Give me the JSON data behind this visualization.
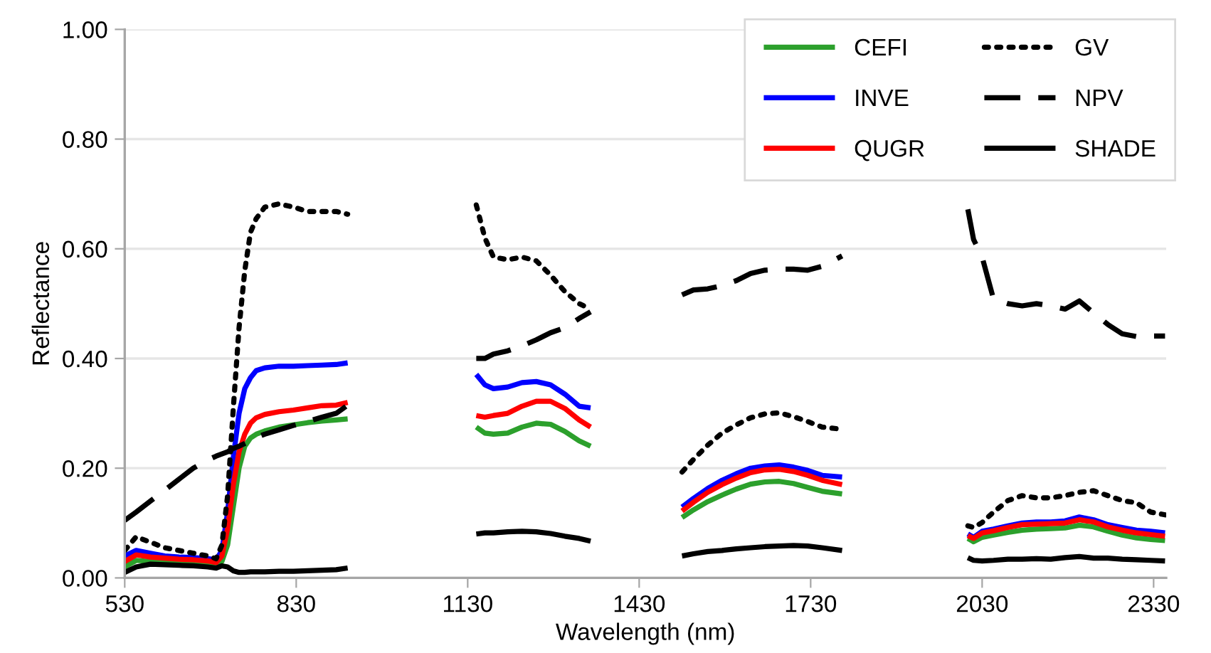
{
  "chart_data": {
    "type": "line",
    "xlabel": "Wavelength (nm)",
    "ylabel": "Reflectance",
    "x": [
      530,
      550,
      575,
      600,
      625,
      650,
      675,
      690,
      700,
      710,
      720,
      730,
      740,
      750,
      760,
      775,
      800,
      825,
      850,
      875,
      900,
      920,
      1000,
      1145,
      1160,
      1175,
      1200,
      1225,
      1250,
      1275,
      1300,
      1325,
      1345,
      1430,
      1505,
      1525,
      1550,
      1575,
      1600,
      1625,
      1650,
      1675,
      1700,
      1725,
      1750,
      1785,
      1900,
      2005,
      2015,
      2030,
      2050,
      2075,
      2100,
      2125,
      2150,
      2175,
      2200,
      2225,
      2250,
      2275,
      2300,
      2325,
      2350
    ],
    "series": [
      {
        "name": "CEFI",
        "color": "#2ca02c",
        "line_style": "solid",
        "values": [
          0.02,
          0.032,
          0.03,
          0.028,
          0.027,
          0.027,
          0.026,
          0.024,
          0.03,
          0.06,
          0.13,
          0.2,
          0.24,
          0.255,
          0.262,
          0.268,
          0.275,
          0.279,
          0.283,
          0.286,
          0.288,
          0.29,
          null,
          0.275,
          0.264,
          0.262,
          0.264,
          0.275,
          0.282,
          0.28,
          0.267,
          0.25,
          0.24,
          null,
          0.11,
          0.124,
          0.139,
          0.151,
          0.162,
          0.171,
          0.175,
          0.176,
          0.172,
          0.165,
          0.158,
          0.153,
          null,
          0.072,
          0.066,
          0.074,
          0.078,
          0.083,
          0.087,
          0.089,
          0.09,
          0.091,
          0.096,
          0.093,
          0.085,
          0.078,
          0.073,
          0.07,
          0.068
        ]
      },
      {
        "name": "INVE",
        "color": "#0000ff",
        "line_style": "solid",
        "values": [
          0.04,
          0.05,
          0.045,
          0.04,
          0.038,
          0.037,
          0.035,
          0.033,
          0.05,
          0.12,
          0.22,
          0.3,
          0.345,
          0.365,
          0.378,
          0.383,
          0.386,
          0.386,
          0.387,
          0.388,
          0.389,
          0.392,
          null,
          0.371,
          0.352,
          0.345,
          0.348,
          0.356,
          0.358,
          0.352,
          0.335,
          0.313,
          0.31,
          null,
          0.129,
          0.145,
          0.163,
          0.178,
          0.19,
          0.2,
          0.204,
          0.206,
          0.202,
          0.196,
          0.187,
          0.184,
          null,
          0.08,
          0.074,
          0.085,
          0.089,
          0.095,
          0.1,
          0.102,
          0.102,
          0.104,
          0.111,
          0.106,
          0.097,
          0.092,
          0.087,
          0.085,
          0.082
        ]
      },
      {
        "name": "QUGR",
        "color": "#ff0000",
        "line_style": "solid",
        "values": [
          0.03,
          0.042,
          0.038,
          0.036,
          0.034,
          0.033,
          0.031,
          0.028,
          0.04,
          0.09,
          0.17,
          0.23,
          0.262,
          0.282,
          0.292,
          0.298,
          0.303,
          0.306,
          0.31,
          0.314,
          0.315,
          0.32,
          null,
          0.296,
          0.293,
          0.296,
          0.3,
          0.313,
          0.322,
          0.322,
          0.309,
          0.288,
          0.275,
          null,
          0.122,
          0.138,
          0.156,
          0.17,
          0.182,
          0.192,
          0.197,
          0.198,
          0.194,
          0.187,
          0.178,
          0.17,
          null,
          0.077,
          0.072,
          0.082,
          0.086,
          0.092,
          0.097,
          0.098,
          0.099,
          0.1,
          0.106,
          0.102,
          0.093,
          0.087,
          0.082,
          0.079,
          0.076
        ]
      },
      {
        "name": "GV",
        "color": "#000000",
        "line_style": "dotted",
        "values": [
          0.05,
          0.075,
          0.065,
          0.055,
          0.05,
          0.045,
          0.04,
          0.035,
          0.06,
          0.15,
          0.31,
          0.456,
          0.56,
          0.63,
          0.655,
          0.676,
          0.682,
          0.676,
          0.668,
          0.668,
          0.668,
          0.663,
          null,
          0.68,
          0.62,
          0.585,
          0.58,
          0.585,
          0.578,
          0.552,
          0.522,
          0.5,
          0.49,
          null,
          0.193,
          0.216,
          0.242,
          0.264,
          0.279,
          0.292,
          0.299,
          0.301,
          0.294,
          0.285,
          0.275,
          0.271,
          null,
          0.095,
          0.092,
          0.101,
          0.12,
          0.141,
          0.15,
          0.146,
          0.146,
          0.15,
          0.156,
          0.159,
          0.15,
          0.141,
          0.137,
          0.12,
          0.115
        ]
      },
      {
        "name": "NPV",
        "color": "#000000",
        "line_style": "dashed",
        "values": [
          0.105,
          0.12,
          0.14,
          0.16,
          0.18,
          0.2,
          0.215,
          0.222,
          0.226,
          0.23,
          0.236,
          0.24,
          0.245,
          0.25,
          0.256,
          0.262,
          0.27,
          0.278,
          0.285,
          0.293,
          0.3,
          0.315,
          null,
          0.4,
          0.4,
          0.408,
          0.414,
          0.423,
          0.434,
          0.447,
          0.456,
          0.473,
          0.485,
          null,
          0.516,
          0.525,
          0.527,
          0.533,
          0.542,
          0.555,
          0.561,
          0.563,
          0.563,
          0.561,
          0.568,
          0.587,
          null,
          0.672,
          0.617,
          0.585,
          0.508,
          0.5,
          0.496,
          0.5,
          0.496,
          0.49,
          0.505,
          0.483,
          0.462,
          0.445,
          0.44,
          0.441,
          0.441
        ]
      },
      {
        "name": "SHADE",
        "color": "#000000",
        "line_style": "solid",
        "values": [
          0.01,
          0.02,
          0.025,
          0.024,
          0.023,
          0.022,
          0.02,
          0.018,
          0.022,
          0.02,
          0.013,
          0.01,
          0.01,
          0.011,
          0.011,
          0.011,
          0.012,
          0.012,
          0.013,
          0.014,
          0.015,
          0.018,
          null,
          0.08,
          0.082,
          0.082,
          0.084,
          0.085,
          0.084,
          0.081,
          0.076,
          0.072,
          0.067,
          null,
          0.04,
          0.044,
          0.048,
          0.05,
          0.053,
          0.055,
          0.057,
          0.058,
          0.059,
          0.058,
          0.055,
          0.05,
          null,
          0.037,
          0.032,
          0.031,
          0.032,
          0.034,
          0.034,
          0.035,
          0.034,
          0.037,
          0.039,
          0.036,
          0.036,
          0.034,
          0.033,
          0.032,
          0.031
        ]
      }
    ],
    "xlim": [
      530,
      2352
    ],
    "xticks": [
      530,
      830,
      1130,
      1430,
      1730,
      2030,
      2330
    ],
    "ylim": [
      0,
      1.0
    ],
    "yticks": [
      {
        "value": 0,
        "label": "0.00"
      },
      {
        "value": 0.2,
        "label": "0.20"
      },
      {
        "value": 0.4,
        "label": "0.40"
      },
      {
        "value": 0.6,
        "label": "0.60"
      },
      {
        "value": 0.8,
        "label": "0.80"
      },
      {
        "value": 1.0,
        "label": "1.00"
      }
    ],
    "grid": "y",
    "legend": "top right",
    "marker": "none"
  }
}
